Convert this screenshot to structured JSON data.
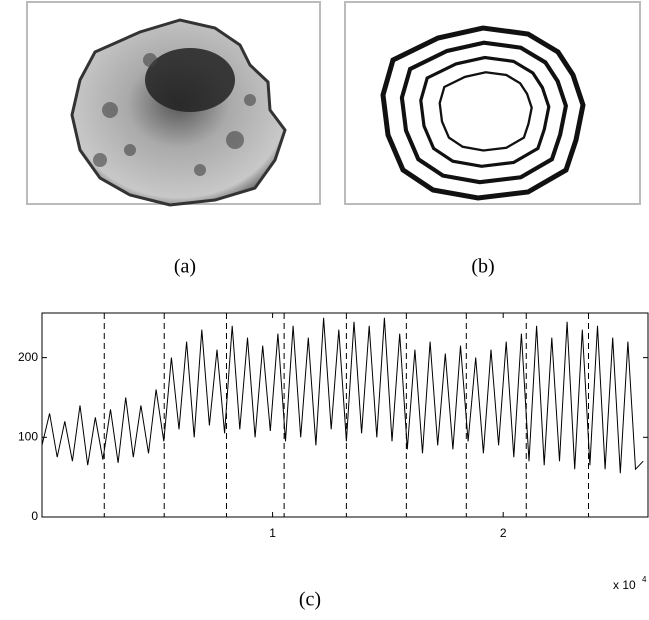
{
  "figure": {
    "labels": [
      "(a)",
      "(b)",
      "(c)"
    ]
  },
  "chart_data": {
    "type": "line",
    "x": [
      0,
      330,
      660,
      990,
      1320,
      1650,
      1980,
      2310,
      2640,
      2970,
      3300,
      3630,
      3960,
      4290,
      4620,
      4950,
      5280,
      5610,
      5940,
      6270,
      6600,
      6930,
      7260,
      7590,
      7920,
      8250,
      8580,
      8910,
      9240,
      9570,
      9900,
      10230,
      10560,
      10890,
      11220,
      11550,
      11880,
      12210,
      12540,
      12870,
      13200,
      13530,
      13860,
      14190,
      14520,
      14850,
      15180,
      15510,
      15840,
      16170,
      16500,
      16830,
      17160,
      17490,
      17820,
      18150,
      18480,
      18810,
      19140,
      19470,
      19800,
      20130,
      20460,
      20790,
      21120,
      21450,
      21780,
      22110,
      22440,
      22770,
      23100,
      23430,
      23760,
      24090,
      24420,
      24750,
      25080,
      25410,
      25740,
      26070
    ],
    "series": [
      {
        "color": "#000000",
        "values": [
          90,
          130,
          75,
          120,
          70,
          140,
          65,
          125,
          72,
          135,
          68,
          150,
          75,
          140,
          80,
          160,
          95,
          200,
          110,
          220,
          100,
          235,
          115,
          210,
          105,
          240,
          110,
          225,
          100,
          215,
          108,
          230,
          95,
          240,
          100,
          225,
          90,
          250,
          110,
          235,
          95,
          245,
          105,
          240,
          100,
          250,
          95,
          230,
          85,
          210,
          80,
          220,
          90,
          205,
          85,
          215,
          95,
          200,
          80,
          210,
          90,
          220,
          75,
          230,
          70,
          240,
          65,
          225,
          70,
          245,
          60,
          235,
          65,
          240,
          60,
          225,
          55,
          220,
          60,
          70
        ]
      }
    ],
    "xlim": [
      0,
      26280
    ],
    "ylim": [
      0,
      256
    ],
    "xticks": [
      {
        "value": 10000,
        "label": "1"
      },
      {
        "value": 20000,
        "label": "2"
      }
    ],
    "yticks": [
      0,
      100,
      200
    ],
    "x_multiplier": {
      "base": "x 10",
      "exponent": "4"
    },
    "markers": [
      2700,
      5300,
      8000,
      10500,
      13200,
      15800,
      18400,
      21000,
      23700
    ]
  }
}
